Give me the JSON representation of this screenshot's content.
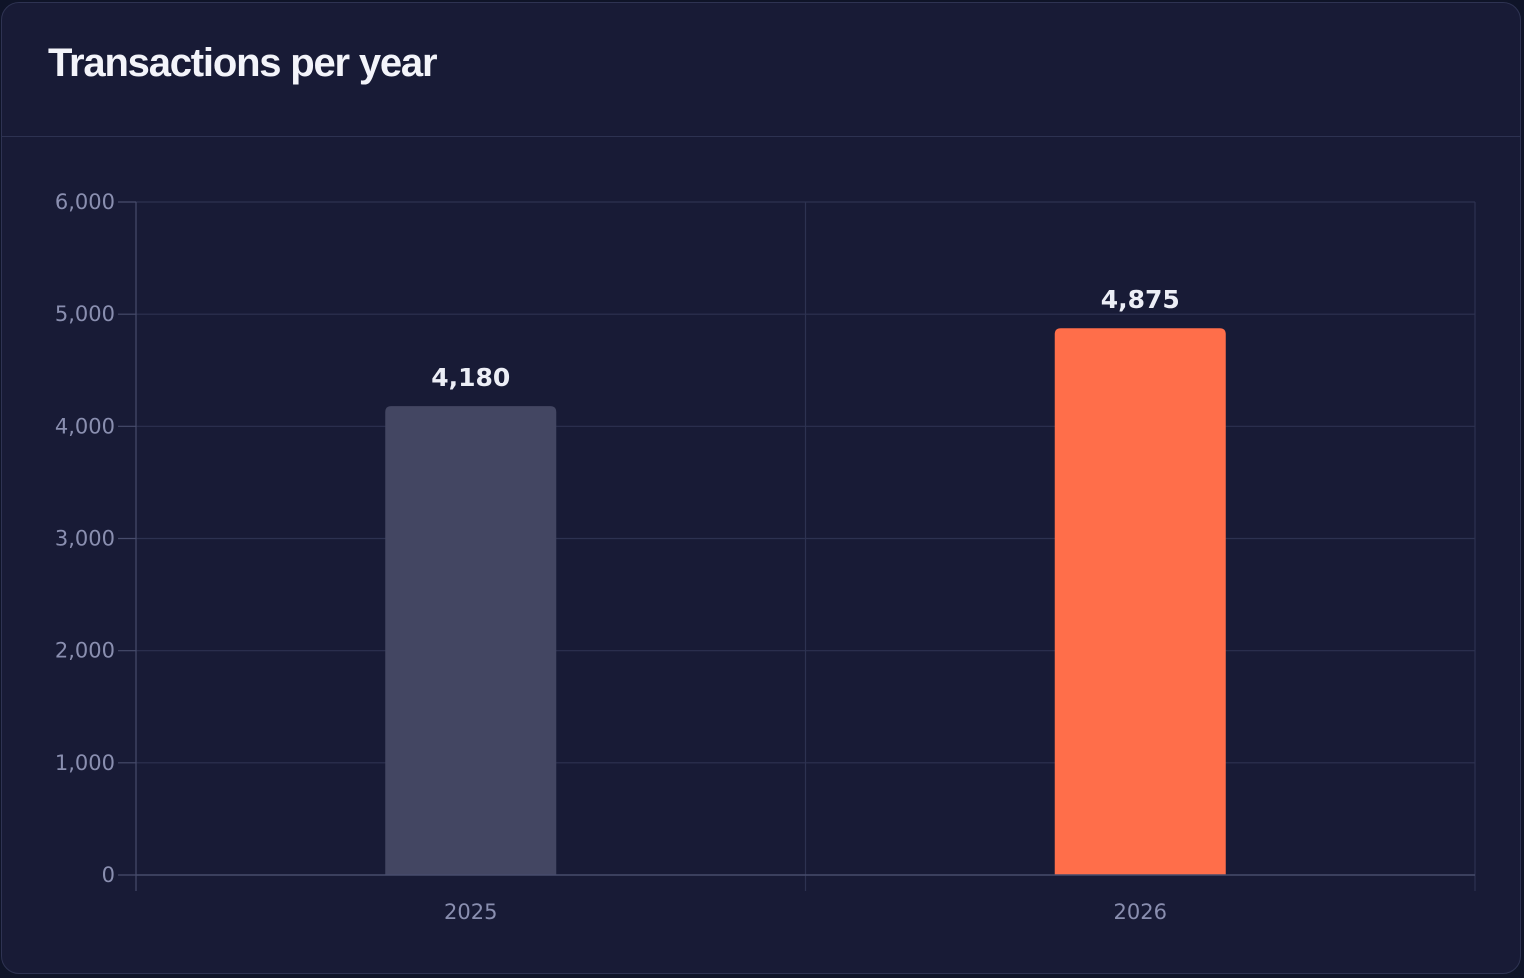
{
  "card": {
    "title": "Transactions per year"
  },
  "chart_data": {
    "type": "bar",
    "title": "Transactions per year",
    "categories": [
      "2025",
      "2026"
    ],
    "values": [
      4180,
      4875
    ],
    "value_labels": [
      "4,180",
      "4,875"
    ],
    "bar_colors": [
      "#434662",
      "#ff6e4a"
    ],
    "ylim": [
      0,
      6000
    ],
    "yticks": [
      0,
      1000,
      2000,
      3000,
      4000,
      5000,
      6000
    ],
    "ytick_labels": [
      "0",
      "1,000",
      "2,000",
      "3,000",
      "4,000",
      "5,000",
      "6,000"
    ],
    "xlabel": "",
    "ylabel": "",
    "grid": true,
    "legend": false
  },
  "colors": {
    "background": "#181b36",
    "grid": "#2d3251",
    "axis": "#474c6c",
    "tick_text": "#8a8fb0",
    "title_text": "#f3f4fa",
    "accent": "#ff6e4a"
  }
}
